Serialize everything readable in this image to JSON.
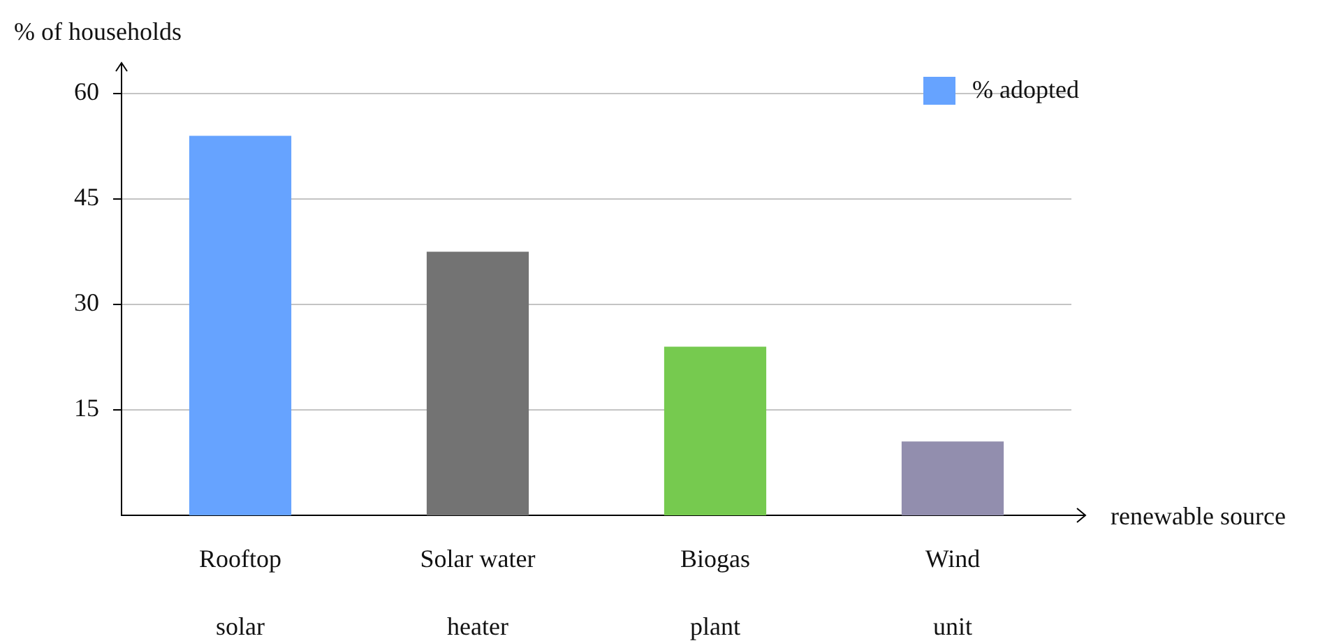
{
  "chart_data": {
    "type": "bar",
    "xlabel": "renewable source",
    "ylabel": "% of households",
    "categories": [
      "Rooftop solar",
      "Solar water heater",
      "Biogas plant",
      "Wind unit"
    ],
    "series": [
      {
        "name": "% adopted",
        "color": "#66a3ff",
        "colors": [
          "#66a3ff",
          "#737373",
          "#76ca4f",
          "#928eae"
        ],
        "values": [
          54,
          37.5,
          24,
          10.5
        ]
      }
    ],
    "ylim": [
      0,
      60
    ],
    "yticks": [
      15,
      30,
      45,
      60
    ],
    "grid": "y",
    "legend": "top right"
  }
}
